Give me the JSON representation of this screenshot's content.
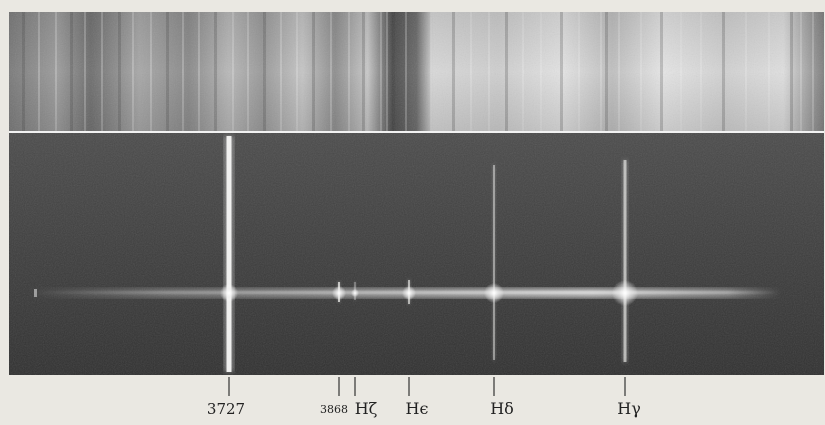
{
  "figure": {
    "labels": {
      "l3727": "3727",
      "l3868": "3868",
      "hzeta": "Hζ",
      "hepsilon": "Hϵ",
      "hdelta": "Hδ",
      "hgamma": "Hγ"
    },
    "colors": {
      "paper": "#eae8e2",
      "spectrum_dark": "#3a3a3a",
      "emission": "#f4f4f2",
      "comparison_light": "#dcdcdc",
      "comparison_dark": "#4a4a4a"
    }
  }
}
